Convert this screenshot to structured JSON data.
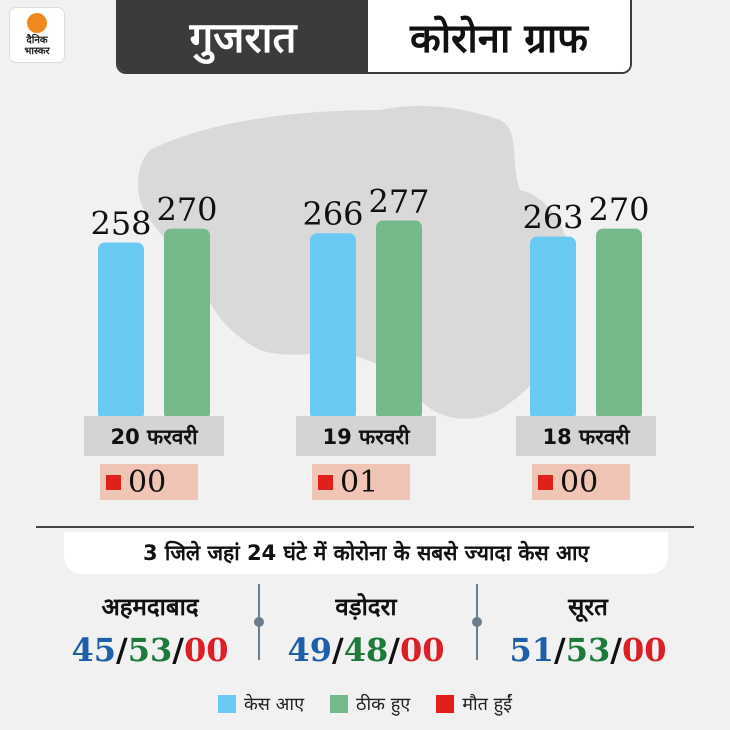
{
  "brand": {
    "line1": "दैनिक",
    "line2": "भास्कर"
  },
  "header": {
    "left": "गुजरात",
    "right": "कोरोना ग्राफ"
  },
  "colors": {
    "cases": "#69c9f2",
    "recovered": "#76b98a",
    "deaths": "#e0201b"
  },
  "chart_data": {
    "type": "bar",
    "categories": [
      "20 फरवरी",
      "19 फरवरी",
      "18 फरवरी"
    ],
    "series": [
      {
        "name": "केस आए",
        "values": [
          258,
          266,
          263
        ]
      },
      {
        "name": "ठीक हुए",
        "values": [
          270,
          277,
          270
        ]
      }
    ],
    "deaths": [
      "00",
      "01",
      "00"
    ],
    "ylim": [
      0,
      290
    ],
    "grid": false,
    "legend": "bottom"
  },
  "districts": {
    "title": "3 जिले जहां 24 घंटे में कोरोना के सबसे ज्यादा केस आए",
    "items": [
      {
        "name": "अहमदाबाद",
        "cases": "45",
        "recovered": "53",
        "deaths": "00"
      },
      {
        "name": "वड़ोदरा",
        "cases": "49",
        "recovered": "48",
        "deaths": "00"
      },
      {
        "name": "सूरत",
        "cases": "51",
        "recovered": "53",
        "deaths": "00"
      }
    ]
  },
  "legend": [
    {
      "label": "केस आए",
      "color": "#69c9f2"
    },
    {
      "label": "ठीक हुए",
      "color": "#76b98a"
    },
    {
      "label": "मौत हुईं",
      "color": "#e0201b"
    }
  ]
}
